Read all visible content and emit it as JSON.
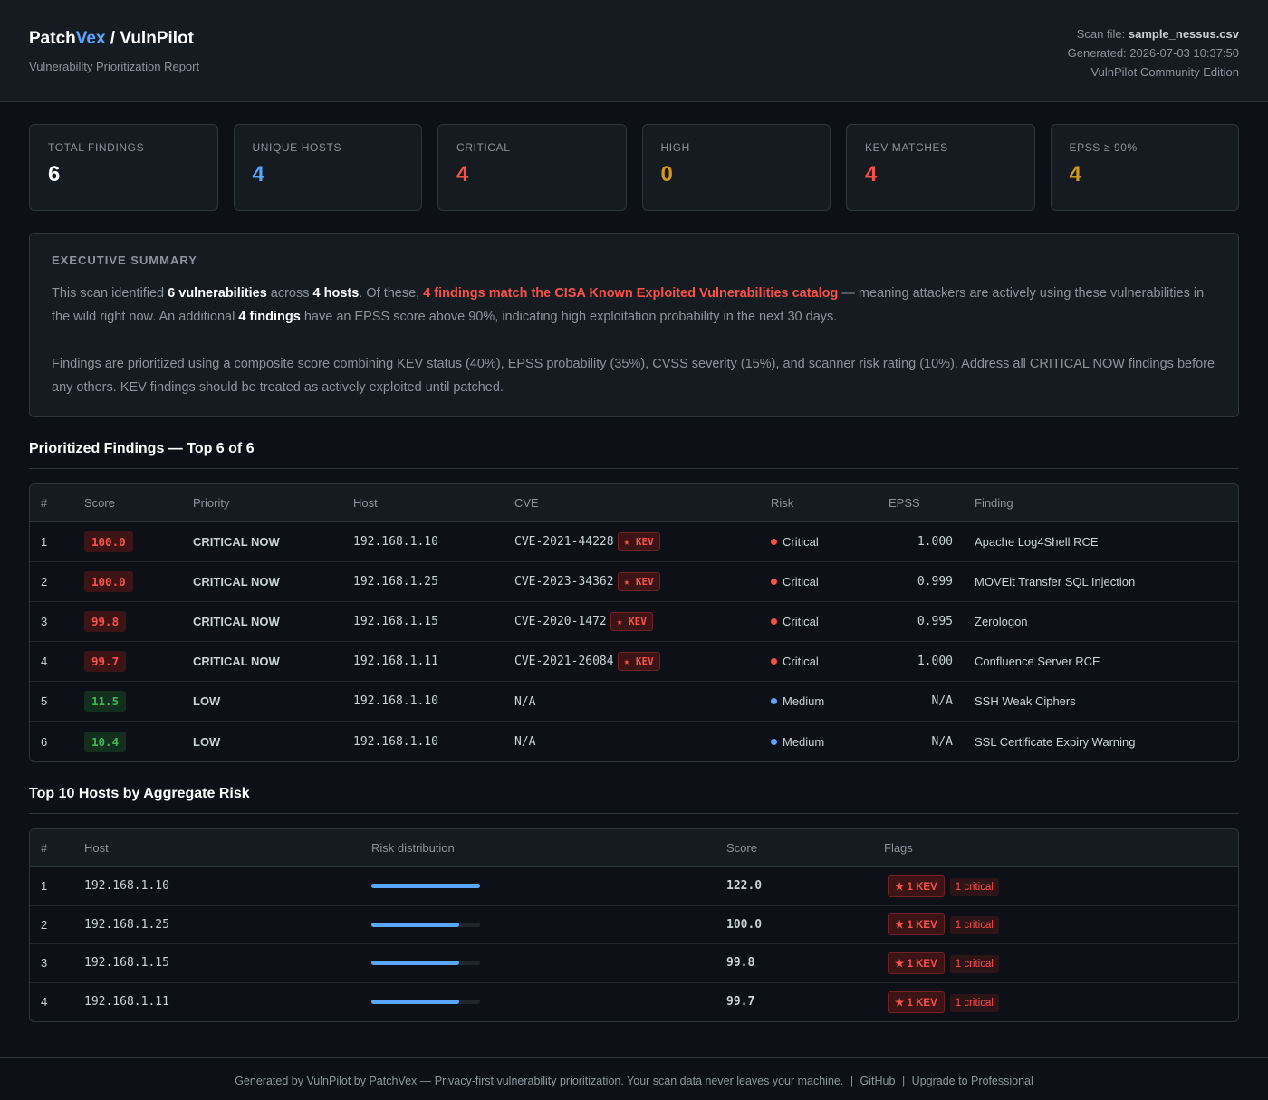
{
  "header": {
    "brand_a": "Patch",
    "brand_b": "Vex",
    "brand_c": " / VulnPilot",
    "subtitle": "Vulnerability Prioritization Report",
    "scan_file_label": "Scan file: ",
    "scan_file": "sample_nessus.csv",
    "generated": "Generated: 2026-07-03 10:37:50",
    "edition": "VulnPilot Community Edition"
  },
  "cards": [
    {
      "label": "TOTAL FINDINGS",
      "value": "6",
      "color": "#ffffff"
    },
    {
      "label": "UNIQUE HOSTS",
      "value": "4",
      "color": "#58a6ff"
    },
    {
      "label": "CRITICAL",
      "value": "4",
      "color": "#f85149"
    },
    {
      "label": "HIGH",
      "value": "0",
      "color": "#d29922"
    },
    {
      "label": "KEV MATCHES",
      "value": "4",
      "color": "#f85149"
    },
    {
      "label": "EPSS ≥ 90%",
      "value": "4",
      "color": "#d29922"
    }
  ],
  "summary": {
    "title": "EXECUTIVE SUMMARY",
    "p1_a": "This scan identified ",
    "p1_b": "6 vulnerabilities",
    "p1_c": " across ",
    "p1_d": "4 hosts",
    "p1_e": ". Of these, ",
    "p1_f": "4 findings match the CISA Known Exploited Vulnerabilities catalog",
    "p1_g": " — meaning attackers are actively using these vulnerabilities in the wild right now. An additional ",
    "p1_h": "4 findings",
    "p1_i": " have an EPSS score above 90%, indicating high exploitation probability in the next 30 days.",
    "p2": "Findings are prioritized using a composite score combining KEV status (40%), EPSS probability (35%), CVSS severity (15%), and scanner risk rating (10%). Address all CRITICAL NOW findings before any others. KEV findings should be treated as actively exploited until patched."
  },
  "findings": {
    "title": "Prioritized Findings — Top 6 of 6",
    "columns": [
      "#",
      "Score",
      "Priority",
      "Host",
      "CVE",
      "Risk",
      "EPSS",
      "Finding"
    ],
    "rows": [
      {
        "n": "1",
        "score": "100.0",
        "priority": "CRITICAL NOW",
        "host": "192.168.1.10",
        "cve": "CVE-2021-44228",
        "kev": "★ KEV",
        "risk": "Critical",
        "epss": "1.000",
        "finding": "Apache Log4Shell RCE"
      },
      {
        "n": "2",
        "score": "100.0",
        "priority": "CRITICAL NOW",
        "host": "192.168.1.25",
        "cve": "CVE-2023-34362",
        "kev": "★ KEV",
        "risk": "Critical",
        "epss": "0.999",
        "finding": "MOVEit Transfer SQL Injection"
      },
      {
        "n": "3",
        "score": "99.8",
        "priority": "CRITICAL NOW",
        "host": "192.168.1.15",
        "cve": "CVE-2020-1472",
        "kev": "★ KEV",
        "risk": "Critical",
        "epss": "0.995",
        "finding": "Zerologon"
      },
      {
        "n": "4",
        "score": "99.7",
        "priority": "CRITICAL NOW",
        "host": "192.168.1.11",
        "cve": "CVE-2021-26084",
        "kev": "★ KEV",
        "risk": "Critical",
        "epss": "1.000",
        "finding": "Confluence Server RCE"
      },
      {
        "n": "5",
        "score": "11.5",
        "priority": "LOW",
        "host": "192.168.1.10",
        "cve": "N/A",
        "kev": "",
        "risk": "Medium",
        "epss": "N/A",
        "finding": "SSH Weak Ciphers"
      },
      {
        "n": "6",
        "score": "10.4",
        "priority": "LOW",
        "host": "192.168.1.10",
        "cve": "N/A",
        "kev": "",
        "risk": "Medium",
        "epss": "N/A",
        "finding": "SSL Certificate Expiry Warning"
      }
    ]
  },
  "hosts": {
    "title": "Top 10 Hosts by Aggregate Risk",
    "columns": [
      "#",
      "Host",
      "Risk distribution",
      "Score",
      "Flags"
    ],
    "rows": [
      {
        "n": "1",
        "host": "192.168.1.10",
        "risk_fraction": 1.0,
        "score": "122.0",
        "kev_flag": "★ 1 KEV",
        "crit_flag": "1 critical"
      },
      {
        "n": "2",
        "host": "192.168.1.25",
        "risk_fraction": 0.81,
        "score": "100.0",
        "kev_flag": "★ 1 KEV",
        "crit_flag": "1 critical"
      },
      {
        "n": "3",
        "host": "192.168.1.15",
        "risk_fraction": 0.81,
        "score": "99.8",
        "kev_flag": "★ 1 KEV",
        "crit_flag": "1 critical"
      },
      {
        "n": "4",
        "host": "192.168.1.11",
        "risk_fraction": 0.81,
        "score": "99.7",
        "kev_flag": "★ 1 KEV",
        "crit_flag": "1 critical"
      }
    ]
  },
  "footer": {
    "prefix": "Generated by ",
    "link_vulnpilot": "VulnPilot by PatchVex",
    "middle": " — Privacy-first vulnerability prioritization. Your scan data never leaves your machine.",
    "sep": "|",
    "link_github": "GitHub",
    "link_upgrade": "Upgrade to Professional"
  }
}
